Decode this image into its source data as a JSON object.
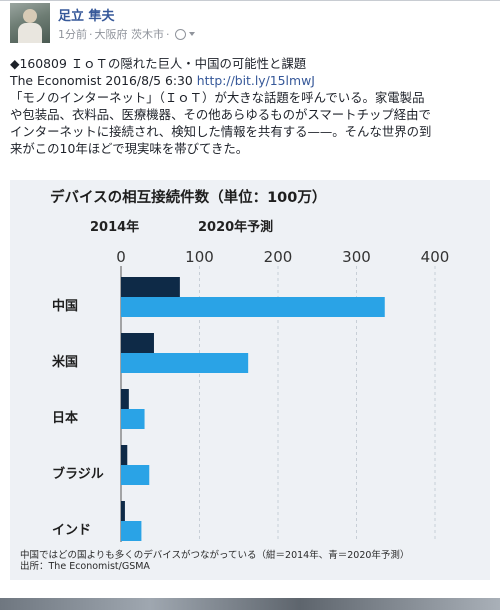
{
  "post": {
    "author": "足立 隼夫",
    "time": "1分前",
    "location": "大阪府 茨木市",
    "title_line": "◆160809 ＩｏＴの隠れた巨人・中国の可能性と課題",
    "source_line": "The Economist 2016/8/5 6:30",
    "link": "http://bit.ly/15lmwJ",
    "body_lines": [
      "「モノのインターネット」（ＩｏＴ）が大きな話題を呼んでいる。家電製品",
      "や包装品、衣料品、医療機器、その他あらゆるものがスマートチップ経由で",
      "インターネットに接続され、検知した情報を共有する——。そんな世界の到",
      "来がこの10年ほどで現実味を帯びてきた。"
    ]
  },
  "figure": {
    "caption_line1": "中国ではどの国よりも多くのデバイスがつながっている（紺＝2014年、青＝2020年予測）",
    "caption_line2": "出所：The Economist/GSMA"
  },
  "colors": {
    "dark_navy": "#0e2a47",
    "bright_blue": "#2aa3e6",
    "link_blue": "#365899",
    "figure_bg": "#eef1f5"
  },
  "chart_data": {
    "type": "bar",
    "orientation": "horizontal",
    "title": "デバイスの相互接続件数（単位：100万）",
    "categories": [
      "中国",
      "米国",
      "日本",
      "ブラジル",
      "インド"
    ],
    "series": [
      {
        "name": "2014年",
        "values": [
          75,
          42,
          10,
          8,
          5
        ]
      },
      {
        "name": "2020年予測",
        "values": [
          336,
          162,
          30,
          36,
          26
        ]
      }
    ],
    "xticks": [
      0,
      100,
      200,
      300,
      400
    ],
    "xlim": [
      0,
      400
    ],
    "grid": true,
    "legend_placement": "top-left"
  }
}
